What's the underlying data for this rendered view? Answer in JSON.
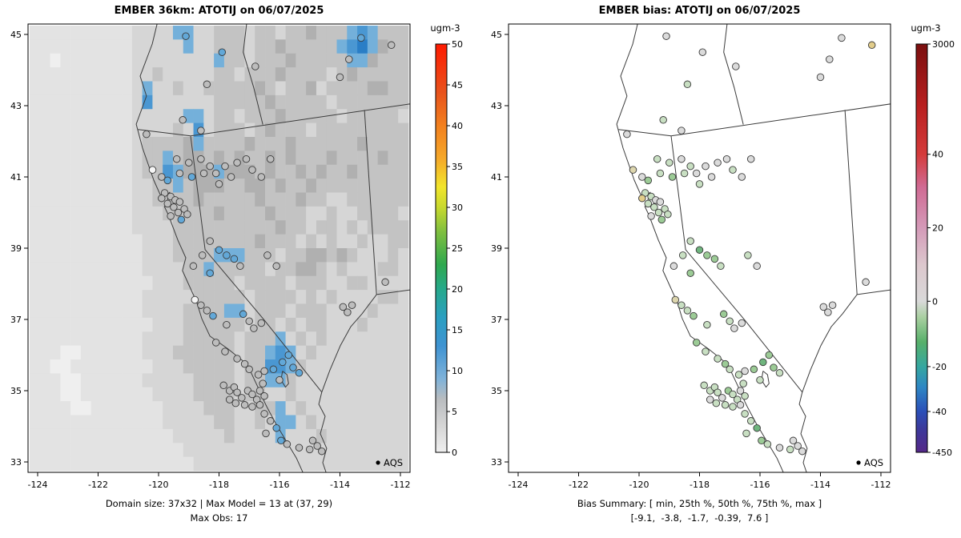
{
  "chart_data": {
    "type": "map",
    "panels": [
      {
        "id": "model",
        "title": "EMBER 36km: ATOTIJ on 06/07/2025",
        "caption_line1": "Domain size: 37x32 | Max Model = 13 at (37, 29)",
        "caption_line2": "Max Obs: 17",
        "show_raster": true,
        "point_color_mode": "class",
        "colorbar": {
          "label": "ugm-3",
          "ticks": [
            [
              "0",
              0
            ],
            [
              "5",
              0.1
            ],
            [
              "10",
              0.2
            ],
            [
              "15",
              0.3
            ],
            [
              "20",
              0.4
            ],
            [
              "25",
              0.5
            ],
            [
              "30",
              0.6
            ],
            [
              "35",
              0.7
            ],
            [
              "40",
              0.8
            ],
            [
              "45",
              0.9
            ],
            [
              "50",
              1
            ]
          ],
          "stops": [
            [
              0,
              "#efefef"
            ],
            [
              0.07,
              "#d4d4d4"
            ],
            [
              0.13,
              "#b9bcbf"
            ],
            [
              0.18,
              "#7fb2d9"
            ],
            [
              0.26,
              "#3f93d2"
            ],
            [
              0.33,
              "#2b9fc1"
            ],
            [
              0.4,
              "#26a98b"
            ],
            [
              0.46,
              "#2fa84e"
            ],
            [
              0.54,
              "#7fbf3f"
            ],
            [
              0.6,
              "#c8d92e"
            ],
            [
              0.65,
              "#f2e52b"
            ],
            [
              0.72,
              "#f5a82a"
            ],
            [
              0.8,
              "#f2801e"
            ],
            [
              0.88,
              "#e8531c"
            ],
            [
              1,
              "#fe1a00"
            ]
          ]
        }
      },
      {
        "id": "bias",
        "title": "EMBER bias: ATOTIJ on 06/07/2025",
        "caption_line1": "Bias Summary: [ min, 25th %, 50th %, 75th %, max ]",
        "caption_line2": "[-9.1,  -3.8,  -1.7,  -0.39,  7.6 ]",
        "show_raster": false,
        "point_color_mode": "bias",
        "colorbar": {
          "label": "ugm-3",
          "ticks": [
            [
              "-450",
              0
            ],
            [
              "-40",
              0.1
            ],
            [
              "-20",
              0.21
            ],
            [
              "0",
              0.37
            ],
            [
              "20",
              0.55
            ],
            [
              "40",
              0.73
            ],
            [
              "3000",
              1
            ]
          ],
          "stops": [
            [
              0,
              "#552888"
            ],
            [
              0.06,
              "#3b3a9c"
            ],
            [
              0.1,
              "#2b4fb8"
            ],
            [
              0.16,
              "#2e87c4"
            ],
            [
              0.21,
              "#35a7a0"
            ],
            [
              0.27,
              "#57b06a"
            ],
            [
              0.33,
              "#a8cfa0"
            ],
            [
              0.37,
              "#d9d9d9"
            ],
            [
              0.46,
              "#dcc7cd"
            ],
            [
              0.55,
              "#d49ab8"
            ],
            [
              0.65,
              "#d06a93"
            ],
            [
              0.73,
              "#d43b3b"
            ],
            [
              0.85,
              "#b81f1f"
            ],
            [
              1,
              "#7a0f0f"
            ]
          ]
        }
      }
    ],
    "axes": {
      "x_ticks": [
        -124,
        -122,
        -120,
        -118,
        -116,
        -114,
        -112
      ],
      "y_ticks": [
        33,
        35,
        37,
        39,
        41,
        43,
        45
      ],
      "x_range": [
        -124.318,
        -111.682
      ],
      "y_range": [
        32.708,
        45.292
      ]
    },
    "legend": {
      "label": "AQS",
      "lon": -112.74,
      "lat": 32.98
    },
    "point_classes": {
      "w": "#f5f5f5",
      "g": "#bdbdbd",
      "b": "#62a8d8",
      "d": "#2d7fc0"
    },
    "bias_scale": [
      {
        "max": -7,
        "color": "#6fb57e"
      },
      {
        "max": -4,
        "color": "#9ccb96"
      },
      {
        "max": -1.5,
        "color": "#c8dfc2"
      },
      {
        "max": 1.5,
        "color": "#dbdbdb"
      },
      {
        "max": 4,
        "color": "#ddd6ae"
      },
      {
        "max": 9999,
        "color": "#e2cd8b"
      }
    ],
    "raster": {
      "ncols": 37,
      "nrows": 32,
      "palette": {
        "0": "#efefef",
        "1": "#e3e3e3",
        "2": "#d6d6d6",
        "3": "#c3c3c3",
        "4": "#b0b0b0",
        "5": "#9e9e9e",
        "b": "#74b0da",
        "B": "#4a97d2",
        "D": "#2a7ec6"
      },
      "rows": [
        "11111111112222bb223332332334333bBb333",
        "111111111122222b22333233433333bBDb433",
        "110111111122222222b332333433333bb4333",
        "1111111111223222223323334333323433333",
        "11111111112b2232233333432334233334433",
        "11111111112B2222223333343333323333333",
        "111111111122222bb23323334333332333332",
        "1111111111222232B23332343332333333333",
        "1111111111233334b33334333433333343333",
        "1111111111233b34434343343433343333433",
        "1111111111233Bb444b444343343433433333",
        "11111111112233b344433443433433333<!--x-->3333",
        "1111111111223333433333433343322333333",
        "1111111111222333334333343332232233332",
        "1111111111222233333333334332332323333",
        "1111111111122233333333433323232232233",
        "111111111112223333bbb3332334434322232",
        "11111111111222233b3333323344323222332",
        "1111111111112223333323333233322332222",
        "1111111111122222333332333323232222332",
        "1111111111122223333bb2333233322223222",
        "1111111111112223333332332323322232222",
        "11111111111222233333233<!--x-->3b232322222222",
        "1110011111122233333323<!--x-->3bBb23222222222",
        "1100111111112223333323<!--x-->3BBb32222222222",
        "11100111111222223333233bb322222222222",
        "1110011111112222333323322322222222222",
        "11110011111112222333223<!--x-->3b232222222222",
        "11111111111112222233223<!--x-->2bb23222222222",
        "11111111111111222223222<!--x-->2b222322222222",
        "1111111111111112222222222222222222222",
        "1111111111111111222222222222222222222"
      ]
    },
    "map_outlines": {
      "coast": [
        [
          -120.05,
          45.29
        ],
        [
          -120.21,
          44.73
        ],
        [
          -120.61,
          43.83
        ],
        [
          -120.4,
          43.27
        ],
        [
          -120.74,
          42.48
        ],
        [
          -120.53,
          41.81
        ],
        [
          -120.16,
          40.91
        ],
        [
          -119.95,
          40.51
        ],
        [
          -119.81,
          40.44
        ],
        [
          -119.63,
          40.57
        ],
        [
          -119.73,
          40.3
        ],
        [
          -119.55,
          40.17
        ],
        [
          -119.81,
          40.17
        ],
        [
          -119.68,
          39.94
        ],
        [
          -119.36,
          39.22
        ],
        [
          -119.1,
          38.73
        ],
        [
          -119.21,
          38.37
        ],
        [
          -118.73,
          37.47
        ],
        [
          -118.57,
          37.02
        ],
        [
          -118.3,
          36.53
        ],
        [
          -117.7,
          36.17
        ],
        [
          -117.17,
          35.81
        ],
        [
          -116.98,
          35.58
        ],
        [
          -116.72,
          35.11
        ],
        [
          -116.5,
          34.69
        ],
        [
          -116.42,
          34.55
        ]
      ],
      "mexico_border": [
        [
          -116.42,
          34.55
        ],
        [
          -116.11,
          34.06
        ],
        [
          -115.76,
          33.56
        ],
        [
          -115.44,
          33.11
        ],
        [
          -115.23,
          32.71
        ]
      ],
      "colorado_river": [
        [
          -114.6,
          34.96
        ],
        [
          -114.7,
          34.62
        ],
        [
          -114.49,
          34.28
        ],
        [
          -114.65,
          33.79
        ],
        [
          -114.44,
          33.38
        ],
        [
          -114.57,
          32.98
        ],
        [
          -114.46,
          32.71
        ]
      ],
      "ca_nv_border": [
        [
          -118.94,
          42.15
        ],
        [
          -118.46,
          38.96
        ],
        [
          -116.5,
          36.98
        ],
        [
          -114.6,
          34.96
        ]
      ],
      "border_42n": [
        [
          -120.68,
          42.33
        ],
        [
          -118.94,
          42.15
        ],
        [
          -111.68,
          43.05
        ]
      ],
      "or_id_border": [
        [
          -117.09,
          45.29
        ],
        [
          -117.2,
          44.5
        ],
        [
          -116.85,
          43.5
        ],
        [
          -116.55,
          42.47
        ]
      ],
      "nv_ut_border": [
        [
          -113.19,
          42.88
        ],
        [
          -112.79,
          37.7
        ]
      ],
      "ut_az_border": [
        [
          -112.79,
          37.7
        ],
        [
          -111.68,
          37.83
        ]
      ],
      "nv_az_border": [
        [
          -112.79,
          37.7
        ],
        [
          -113.27,
          37.16
        ],
        [
          -113.64,
          36.8
        ],
        [
          -113.99,
          36.26
        ],
        [
          -114.33,
          35.58
        ],
        [
          -114.6,
          34.96
        ]
      ],
      "salton_sea": [
        [
          -115.9,
          35.55
        ],
        [
          -115.75,
          35.45
        ],
        [
          -115.7,
          35.2
        ],
        [
          -115.8,
          35.1
        ],
        [
          -115.95,
          35.3
        ],
        [
          -115.9,
          35.55
        ]
      ]
    },
    "stations": [
      [
        -119.1,
        44.95,
        "b",
        -0.5
      ],
      [
        -117.9,
        44.5,
        "b",
        -1.2
      ],
      [
        -116.8,
        44.1,
        "g",
        -0.8
      ],
      [
        -118.4,
        43.6,
        "g",
        -1.5
      ],
      [
        -113.3,
        44.9,
        "b",
        -0.6
      ],
      [
        -113.7,
        44.3,
        "g",
        -1.0
      ],
      [
        -112.3,
        44.7,
        "g",
        5.5
      ],
      [
        -114.0,
        43.8,
        "g",
        -0.4
      ],
      [
        -119.2,
        42.6,
        "g",
        -1.8
      ],
      [
        -118.6,
        42.3,
        "g",
        -0.9
      ],
      [
        -120.4,
        42.2,
        "g",
        -1.1
      ],
      [
        -119.4,
        41.5,
        "g",
        -2.5
      ],
      [
        -119.0,
        41.4,
        "g",
        -1.6
      ],
      [
        -118.6,
        41.5,
        "g",
        -0.7
      ],
      [
        -118.3,
        41.3,
        "g",
        -2.2
      ],
      [
        -119.3,
        41.1,
        "g",
        -3.5
      ],
      [
        -118.9,
        41.0,
        "b",
        -4.2
      ],
      [
        -118.5,
        41.1,
        "g",
        -1.9
      ],
      [
        -118.1,
        41.1,
        "g",
        -0.5
      ],
      [
        -117.8,
        41.3,
        "g",
        -1.4
      ],
      [
        -117.4,
        41.4,
        "g",
        -0.8
      ],
      [
        -117.1,
        41.5,
        "g",
        -1.2
      ],
      [
        -116.9,
        41.2,
        "g",
        -2.0
      ],
      [
        -117.6,
        41.0,
        "g",
        -1.0
      ],
      [
        -118.0,
        40.8,
        "g",
        -2.8
      ],
      [
        -119.7,
        40.9,
        "b",
        -5.0
      ],
      [
        -120.2,
        41.2,
        "w",
        3.5
      ],
      [
        -119.9,
        41.0,
        "g",
        -0.6
      ],
      [
        -116.6,
        41.0,
        "g",
        -1.3
      ],
      [
        -116.3,
        41.5,
        "g",
        -0.9
      ],
      [
        -119.8,
        40.55,
        "g",
        -1.7
      ],
      [
        -119.6,
        40.45,
        "g",
        -2.4
      ],
      [
        -119.45,
        40.35,
        "g",
        -1.1
      ],
      [
        -119.7,
        40.25,
        "g",
        -3.0
      ],
      [
        -119.5,
        40.15,
        "g",
        -1.9
      ],
      [
        -119.3,
        40.3,
        "g",
        -0.8
      ],
      [
        -119.9,
        40.4,
        "g",
        7.6
      ],
      [
        -119.35,
        40.0,
        "g",
        -2.6
      ],
      [
        -119.15,
        40.1,
        "g",
        -1.5
      ],
      [
        -119.6,
        39.9,
        "g",
        -0.9
      ],
      [
        -119.25,
        39.8,
        "b",
        -4.6
      ],
      [
        -119.05,
        39.95,
        "g",
        -2.1
      ],
      [
        -118.3,
        39.2,
        "g",
        -3.2
      ],
      [
        -118.0,
        38.95,
        "b",
        -7.5
      ],
      [
        -117.75,
        38.8,
        "b",
        -5.5
      ],
      [
        -117.5,
        38.7,
        "b",
        -4.8
      ],
      [
        -118.55,
        38.8,
        "g",
        -2.3
      ],
      [
        -118.85,
        38.5,
        "g",
        -1.0
      ],
      [
        -117.3,
        38.5,
        "g",
        -3.8
      ],
      [
        -116.4,
        38.8,
        "g",
        -1.6
      ],
      [
        -116.1,
        38.5,
        "g",
        -0.7
      ],
      [
        -118.3,
        38.3,
        "b",
        -6.2
      ],
      [
        -113.9,
        37.35,
        "g",
        -0.5
      ],
      [
        -113.75,
        37.2,
        "g",
        -1.2
      ],
      [
        -113.6,
        37.4,
        "g",
        0.8
      ],
      [
        -118.8,
        37.55,
        "w",
        2.5
      ],
      [
        -118.6,
        37.4,
        "g",
        -1.8
      ],
      [
        -118.4,
        37.25,
        "g",
        -3.4
      ],
      [
        -118.2,
        37.1,
        "b",
        -5.8
      ],
      [
        -117.2,
        37.15,
        "b",
        -4.4
      ],
      [
        -117.0,
        36.95,
        "g",
        -2.7
      ],
      [
        -117.75,
        36.85,
        "g",
        -1.9
      ],
      [
        -116.85,
        36.75,
        "g",
        -1.1
      ],
      [
        -116.6,
        36.9,
        "g",
        -0.6
      ],
      [
        -118.1,
        36.35,
        "g",
        -4.0
      ],
      [
        -117.8,
        36.1,
        "g",
        -3.1
      ],
      [
        -117.4,
        35.9,
        "g",
        -2.2
      ],
      [
        -117.15,
        35.75,
        "g",
        -5.2
      ],
      [
        -117.0,
        35.6,
        "g",
        -3.6
      ],
      [
        -116.7,
        35.45,
        "g",
        -2.9
      ],
      [
        -116.5,
        35.55,
        "g",
        -1.4
      ],
      [
        -116.2,
        35.6,
        "b",
        -6.5
      ],
      [
        -115.9,
        35.8,
        "b",
        -8.3
      ],
      [
        -115.7,
        36.0,
        "b",
        -5.1
      ],
      [
        -115.55,
        35.65,
        "b",
        -4.3
      ],
      [
        -115.35,
        35.5,
        "b",
        -3.3
      ],
      [
        -116.0,
        35.3,
        "g",
        -2.0
      ],
      [
        -116.55,
        35.2,
        "g",
        -1.5
      ],
      [
        -117.85,
        35.15,
        "g",
        -2.6
      ],
      [
        -117.65,
        35.0,
        "g",
        -1.8
      ],
      [
        -117.5,
        35.1,
        "g",
        -3.9
      ],
      [
        -117.4,
        34.95,
        "g",
        -2.4
      ],
      [
        -117.25,
        34.8,
        "g",
        -1.3
      ],
      [
        -117.05,
        35.0,
        "g",
        -4.7
      ],
      [
        -116.9,
        34.9,
        "g",
        -2.8
      ],
      [
        -116.75,
        34.75,
        "g",
        -1.7
      ],
      [
        -116.65,
        35.0,
        "g",
        -0.9
      ],
      [
        -116.5,
        34.85,
        "g",
        -3.5
      ],
      [
        -117.15,
        34.6,
        "g",
        -2.1
      ],
      [
        -116.9,
        34.55,
        "g",
        -1.6
      ],
      [
        -116.65,
        34.6,
        "g",
        -0.8
      ],
      [
        -117.45,
        34.65,
        "g",
        -2.9
      ],
      [
        -117.65,
        34.75,
        "g",
        -1.2
      ],
      [
        -116.5,
        34.35,
        "g",
        -3.7
      ],
      [
        -116.3,
        34.15,
        "g",
        -2.5
      ],
      [
        -116.1,
        33.95,
        "b",
        -9.1
      ],
      [
        -116.45,
        33.8,
        "g",
        -1.9
      ],
      [
        -115.95,
        33.6,
        "b",
        -6.8
      ],
      [
        -115.75,
        33.5,
        "g",
        -2.3
      ],
      [
        -114.9,
        33.6,
        "g",
        -0.5
      ],
      [
        -114.75,
        33.45,
        "g",
        -1.0
      ],
      [
        -115.0,
        33.35,
        "g",
        -1.8
      ],
      [
        -114.6,
        33.3,
        "g",
        -0.7
      ],
      [
        -115.35,
        33.4,
        "g",
        -1.4
      ],
      [
        -112.5,
        38.05,
        "g",
        0.3
      ]
    ]
  }
}
